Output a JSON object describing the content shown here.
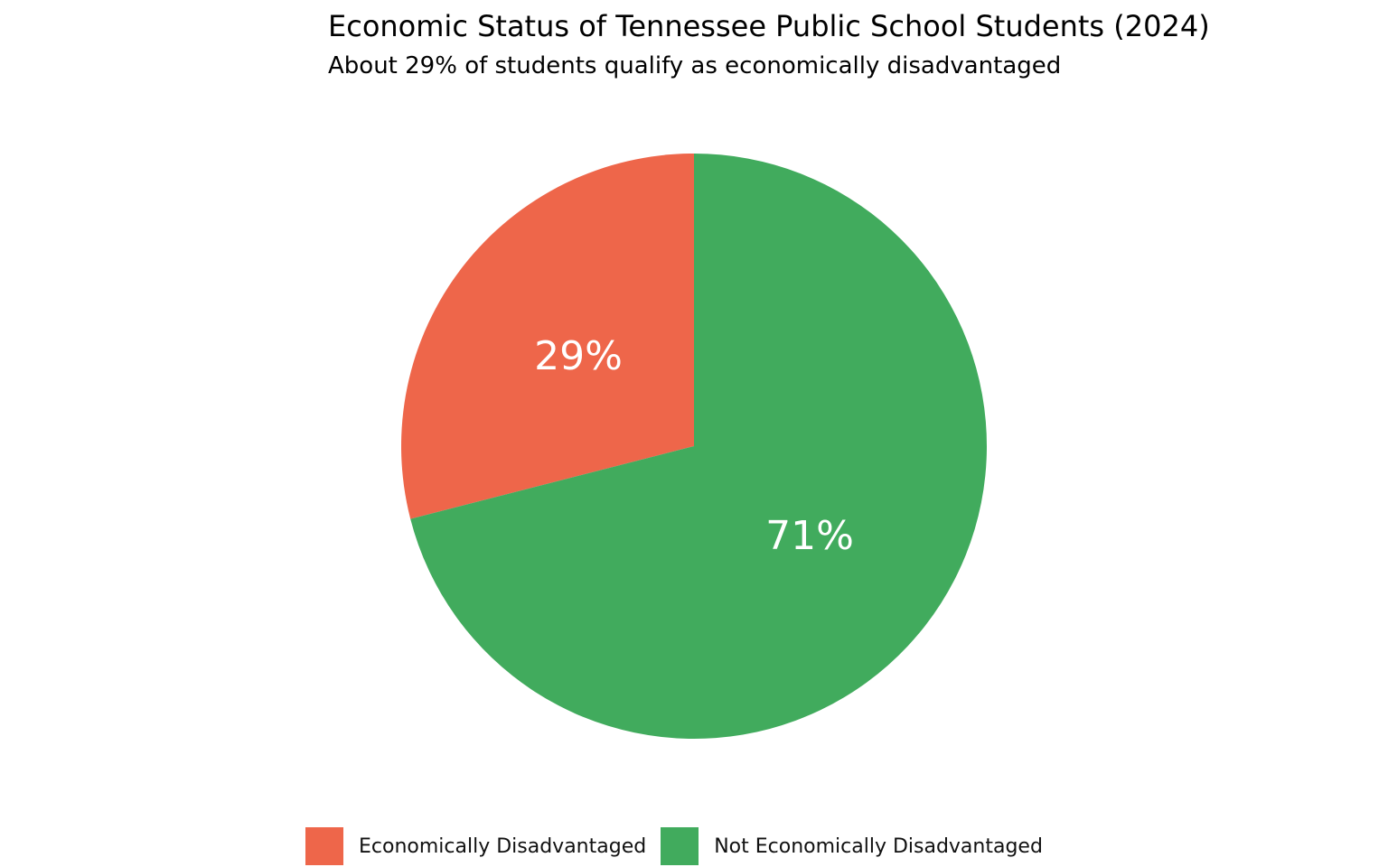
{
  "chart_data": {
    "type": "pie",
    "title": "Economic Status of Tennessee Public School Students (2024)",
    "subtitle": "About 29% of students qualify as economically disadvantaged",
    "legend_position": "bottom",
    "slices": [
      {
        "name": "Economically Disadvantaged",
        "value": 29,
        "label": "29%",
        "color": "#EE664A"
      },
      {
        "name": "Not Economically Disadvantaged",
        "value": 71,
        "label": "71%",
        "color": "#41AB5D"
      }
    ]
  }
}
